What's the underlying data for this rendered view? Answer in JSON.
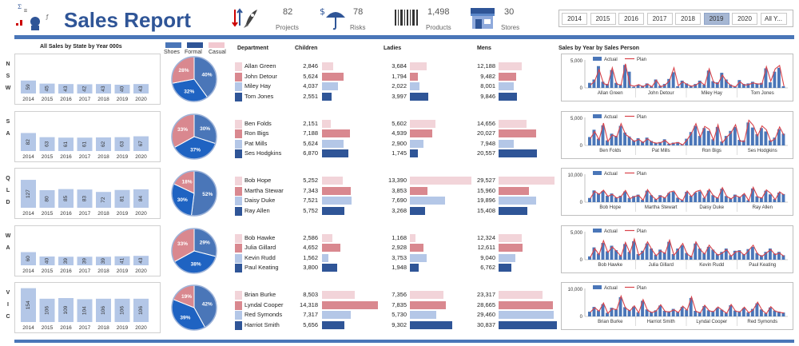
{
  "header": {
    "title": "Sales Report",
    "kpis": [
      {
        "id": "projects",
        "value": "82",
        "label": "Projects"
      },
      {
        "id": "risks",
        "value": "78",
        "label": "Risks"
      },
      {
        "id": "products",
        "value": "1,498",
        "label": "Products"
      },
      {
        "id": "stores",
        "value": "30",
        "label": "Stores"
      }
    ],
    "years": [
      "2014",
      "2015",
      "2016",
      "2017",
      "2018",
      "2019",
      "2020",
      "All Y..."
    ],
    "selected_year": "2019"
  },
  "headings": {
    "state_sales": "All Sales by State by Year 000s",
    "department": "Department",
    "children": "Children",
    "ladies": "Ladies",
    "mens": "Mens",
    "by_person": "Sales by Year by Sales Person"
  },
  "legend": [
    {
      "name": "Shoes",
      "color": "#4a76b8"
    },
    {
      "name": "Formal",
      "color": "#2f5597"
    },
    {
      "name": "Casual",
      "color": "#f2c8d0"
    }
  ],
  "colors": {
    "accent": "#2f5597",
    "bar_light": "#b4c7e7",
    "row_colors": [
      "#f2d4d9",
      "#d9888f",
      "#b4c7e7",
      "#2f5597"
    ],
    "pie": [
      "#4a76b8",
      "#1f63c2",
      "#d9888f"
    ],
    "actual": "#4a76b8",
    "plan": "#d9434a"
  },
  "chart_data": [
    {
      "id": "nsw",
      "type": "bar",
      "state_letters": [
        "N",
        "S",
        "W"
      ],
      "categories": [
        "2014",
        "2015",
        "2016",
        "2017",
        "2018",
        "2019",
        "2020"
      ],
      "values": [
        59,
        45,
        43,
        42,
        43,
        40,
        43
      ],
      "pie": {
        "type": "pie",
        "labels": [
          "40%",
          "32%",
          "28%"
        ],
        "values": [
          40,
          32,
          28
        ]
      },
      "people": [
        {
          "name": "Allan Green",
          "children": "2,846",
          "children_v": 2846,
          "ladies": "3,684",
          "ladies_v": 3684,
          "mens": "12,188",
          "mens_v": 12188
        },
        {
          "name": "John Detour",
          "children": "5,624",
          "children_v": 5624,
          "ladies": "1,794",
          "ladies_v": 1794,
          "mens": "9,482",
          "mens_v": 9482
        },
        {
          "name": "Miley Hay",
          "children": "4,037",
          "children_v": 4037,
          "ladies": "2,022",
          "ladies_v": 2022,
          "mens": "8,001",
          "mens_v": 8001
        },
        {
          "name": "Tom Jones",
          "children": "2,551",
          "children_v": 2551,
          "ladies": "3,997",
          "ladies_v": 3997,
          "mens": "9,846",
          "mens_v": 9846
        }
      ],
      "line": {
        "type": "bar",
        "ymax": 5000,
        "yticks": [
          "5,000",
          "0"
        ],
        "legend": [
          "Actual",
          "Plan"
        ],
        "names": [
          "Allan Green",
          "John Detour",
          "Miley Hay",
          "Tom Jones"
        ],
        "actual": [
          900,
          1500,
          3900,
          1100,
          700,
          3200,
          900,
          600,
          4100,
          2900,
          200,
          500,
          400,
          800,
          300,
          1500,
          400,
          700,
          1600,
          2800,
          300,
          1300,
          800,
          400,
          700,
          1300,
          600,
          3100,
          1200,
          1000,
          2700,
          1500,
          600,
          300,
          1400,
          700,
          800,
          1100,
          800,
          900,
          3500,
          1000,
          2900,
          3600,
          300
        ],
        "plan": [
          500,
          1200,
          3300,
          800,
          500,
          3600,
          700,
          500,
          4300,
          500,
          300,
          600,
          200,
          700,
          200,
          1400,
          200,
          500,
          1300,
          3600,
          400,
          1100,
          600,
          300,
          500,
          1100,
          500,
          3400,
          1000,
          700,
          2300,
          1100,
          400,
          200,
          1100,
          500,
          600,
          900,
          700,
          700,
          3800,
          1200,
          3400,
          4000,
          300
        ]
      }
    },
    {
      "id": "sa",
      "type": "bar",
      "state_letters": [
        "S",
        "A"
      ],
      "categories": [
        "2014",
        "2015",
        "2016",
        "2017",
        "2018",
        "2019",
        "2020"
      ],
      "values": [
        82,
        63,
        61,
        61,
        62,
        63,
        67
      ],
      "pie": {
        "type": "pie",
        "labels": [
          "30%",
          "37%",
          "33%"
        ],
        "values": [
          30,
          37,
          33
        ]
      },
      "people": [
        {
          "name": "Ben Folds",
          "children": "2,151",
          "children_v": 2151,
          "ladies": "5,602",
          "ladies_v": 5602,
          "mens": "14,656",
          "mens_v": 14656
        },
        {
          "name": "Ron Bigs",
          "children": "7,188",
          "children_v": 7188,
          "ladies": "4,939",
          "ladies_v": 4939,
          "mens": "20,027",
          "mens_v": 20027
        },
        {
          "name": "Pat Mills",
          "children": "5,624",
          "children_v": 5624,
          "ladies": "2,900",
          "ladies_v": 2900,
          "mens": "7,948",
          "mens_v": 7948
        },
        {
          "name": "Ses Hodgkins",
          "children": "6,870",
          "children_v": 6870,
          "ladies": "1,745",
          "ladies_v": 1745,
          "mens": "20,557",
          "mens_v": 20557
        }
      ],
      "line": {
        "type": "bar",
        "ymax": 5000,
        "yticks": [
          "5,000",
          "0"
        ],
        "legend": [
          "Actual",
          "Plan"
        ],
        "names": [
          "Ben Folds",
          "Pat Mills",
          "Ron Bigs",
          "Ses Hodgkins"
        ],
        "actual": [
          1500,
          2800,
          1200,
          3600,
          900,
          2100,
          1700,
          3500,
          2300,
          1600,
          900,
          1300,
          700,
          1400,
          800,
          500,
          600,
          1100,
          300,
          500,
          600,
          200,
          1200,
          2400,
          3500,
          1700,
          3100,
          2600,
          1100,
          3300,
          700,
          1700,
          2600,
          3300,
          1000,
          900,
          4100,
          3200,
          2000,
          3100,
          2500,
          900,
          1400,
          2900,
          2100
        ],
        "plan": [
          1200,
          2500,
          1000,
          4000,
          700,
          1900,
          1500,
          3900,
          2000,
          1400,
          700,
          1100,
          500,
          1200,
          600,
          400,
          500,
          900,
          200,
          400,
          500,
          100,
          1000,
          2200,
          3900,
          1500,
          3400,
          2900,
          900,
          3700,
          500,
          1500,
          2300,
          3700,
          800,
          700,
          4500,
          3600,
          1700,
          3500,
          2800,
          700,
          1200,
          3300,
          1800
        ]
      }
    },
    {
      "id": "qld",
      "type": "bar",
      "state_letters": [
        "Q",
        "L",
        "D"
      ],
      "categories": [
        "2014",
        "2015",
        "2016",
        "2017",
        "2018",
        "2019",
        "2020"
      ],
      "values": [
        127,
        80,
        85,
        83,
        72,
        81,
        84
      ],
      "pie": {
        "type": "pie",
        "labels": [
          "52%",
          "30%",
          "18%"
        ],
        "values": [
          52,
          30,
          18
        ]
      },
      "people": [
        {
          "name": "Bob Hope",
          "children": "5,252",
          "children_v": 5252,
          "ladies": "13,390",
          "ladies_v": 13390,
          "mens": "29,527",
          "mens_v": 29527
        },
        {
          "name": "Martha Stewar",
          "children": "7,343",
          "children_v": 7343,
          "ladies": "3,853",
          "ladies_v": 3853,
          "mens": "15,960",
          "mens_v": 15960
        },
        {
          "name": "Daisy Duke",
          "children": "7,521",
          "children_v": 7521,
          "ladies": "7,690",
          "ladies_v": 7690,
          "mens": "19,896",
          "mens_v": 19896
        },
        {
          "name": "Ray Allen",
          "children": "5,752",
          "children_v": 5752,
          "ladies": "3,268",
          "ladies_v": 3268,
          "mens": "15,408",
          "mens_v": 15408
        }
      ],
      "line": {
        "type": "bar",
        "ymax": 10000,
        "yticks": [
          "10,000",
          "0"
        ],
        "legend": [
          "Actual",
          "Plan"
        ],
        "names": [
          "Bob Hope",
          "Martha Stewart",
          "Daisy Duke",
          "Ray Allen"
        ],
        "actual": [
          1500,
          4200,
          3100,
          4000,
          2300,
          3100,
          1700,
          2300,
          3800,
          1500,
          2200,
          2700,
          900,
          4100,
          2500,
          1100,
          2500,
          1700,
          3300,
          3700,
          1600,
          800,
          3700,
          2300,
          3500,
          3900,
          1600,
          4200,
          2500,
          1600,
          4800,
          2200,
          1400,
          2700,
          1900,
          2800,
          700,
          4900,
          2100,
          1700,
          4100,
          2800,
          1100,
          3400,
          2900
        ],
        "plan": [
          1300,
          3900,
          2800,
          4300,
          2100,
          2800,
          1500,
          2000,
          4200,
          1300,
          2000,
          2400,
          700,
          4500,
          2200,
          900,
          2200,
          1500,
          3600,
          4000,
          1400,
          600,
          4000,
          2000,
          3800,
          4300,
          1400,
          4600,
          2200,
          1400,
          5200,
          2000,
          1200,
          2400,
          1700,
          3100,
          500,
          5300,
          1900,
          1500,
          4400,
          3100,
          900,
          3700,
          2600
        ]
      }
    },
    {
      "id": "wa",
      "type": "bar",
      "state_letters": [
        "W",
        "A"
      ],
      "categories": [
        "2014",
        "2015",
        "2016",
        "2017",
        "2018",
        "2019",
        "2020"
      ],
      "values": [
        60,
        40,
        39,
        39,
        39,
        41,
        43
      ],
      "pie": {
        "type": "pie",
        "labels": [
          "29%",
          "38%",
          "33%"
        ],
        "values": [
          29,
          38,
          33
        ]
      },
      "people": [
        {
          "name": "Bob Hawke",
          "children": "2,586",
          "children_v": 2586,
          "ladies": "1,168",
          "ladies_v": 1168,
          "mens": "12,324",
          "mens_v": 12324
        },
        {
          "name": "Julia Gillard",
          "children": "4,652",
          "children_v": 4652,
          "ladies": "2,928",
          "ladies_v": 2928,
          "mens": "12,611",
          "mens_v": 12611
        },
        {
          "name": "Kevin Rudd",
          "children": "1,562",
          "children_v": 1562,
          "ladies": "3,753",
          "ladies_v": 3753,
          "mens": "9,040",
          "mens_v": 9040
        },
        {
          "name": "Paul Keating",
          "children": "3,800",
          "children_v": 3800,
          "ladies": "1,948",
          "ladies_v": 1948,
          "mens": "6,762",
          "mens_v": 6762
        }
      ],
      "line": {
        "type": "bar",
        "ymax": 5000,
        "yticks": [
          "5,000",
          "0"
        ],
        "legend": [
          "Actual",
          "Plan"
        ],
        "names": [
          "Bob Hawke",
          "Julia Gillard",
          "Kevin Rudd",
          "Paul Keating"
        ],
        "actual": [
          600,
          2200,
          1100,
          3000,
          1500,
          2500,
          1700,
          800,
          2800,
          1400,
          3300,
          1000,
          1600,
          2900,
          2000,
          900,
          1800,
          1300,
          3200,
          1000,
          2000,
          2600,
          1200,
          700,
          2900,
          2000,
          1200,
          2300,
          1800,
          1000,
          1400,
          2000,
          800,
          1600,
          1700,
          1000,
          1900,
          2300,
          1200,
          800,
          1400,
          2000,
          1100,
          1400,
          800
        ],
        "plan": [
          400,
          2000,
          900,
          3400,
          1300,
          2300,
          1500,
          600,
          3100,
          1200,
          3700,
          800,
          1400,
          3200,
          1800,
          700,
          1600,
          1100,
          3500,
          800,
          1800,
          2900,
          1000,
          500,
          3200,
          1800,
          1000,
          2600,
          1600,
          800,
          1200,
          1800,
          600,
          1400,
          1500,
          800,
          1700,
          2600,
          1000,
          600,
          1200,
          1800,
          900,
          1200,
          600
        ]
      }
    },
    {
      "id": "vic",
      "type": "bar",
      "state_letters": [
        "V",
        "I",
        "C"
      ],
      "categories": [
        "2014",
        "2015",
        "2016",
        "2017",
        "2018",
        "2019",
        "2020"
      ],
      "values": [
        154,
        106,
        109,
        104,
        106,
        106,
        106
      ],
      "pie": {
        "type": "pie",
        "labels": [
          "42%",
          "39%",
          "19%"
        ],
        "values": [
          42,
          39,
          19
        ]
      },
      "people": [
        {
          "name": "Brian Burke",
          "children": "8,503",
          "children_v": 8503,
          "ladies": "7,356",
          "ladies_v": 7356,
          "mens": "23,317",
          "mens_v": 23317
        },
        {
          "name": "Lyndal Cooper",
          "children": "14,318",
          "children_v": 14318,
          "ladies": "7,835",
          "ladies_v": 7835,
          "mens": "28,665",
          "mens_v": 28665
        },
        {
          "name": "Red Symonds",
          "children": "7,317",
          "children_v": 7317,
          "ladies": "5,730",
          "ladies_v": 5730,
          "mens": "29,460",
          "mens_v": 29460
        },
        {
          "name": "Harriot Smith",
          "children": "5,656",
          "children_v": 5656,
          "ladies": "9,302",
          "ladies_v": 9302,
          "mens": "30,837",
          "mens_v": 30837
        }
      ],
      "line": {
        "type": "bar",
        "ymax": 10000,
        "yticks": [
          "10,000",
          "0"
        ],
        "legend": [
          "Actual",
          "Plan"
        ],
        "names": [
          "Brian Burke",
          "Harriot Smith",
          "Lyndal Cooper",
          "Red Symonds"
        ],
        "actual": [
          1700,
          3400,
          2100,
          4400,
          1300,
          3100,
          2600,
          6900,
          3300,
          2200,
          3500,
          1500,
          5600,
          2500,
          1600,
          2200,
          3900,
          2000,
          1800,
          2700,
          1600,
          3400,
          2400,
          6600,
          2000,
          1500,
          3700,
          2200,
          1900,
          3100,
          2400,
          1300,
          4000,
          2100,
          1800,
          3000,
          1500,
          2700,
          4700,
          2500,
          1200,
          3200,
          2100,
          1700,
          1400
        ],
        "plan": [
          1500,
          3100,
          1900,
          4800,
          1100,
          2800,
          2400,
          7300,
          3000,
          2000,
          3800,
          1300,
          6000,
          2200,
          1400,
          2000,
          4200,
          1800,
          1600,
          2400,
          1400,
          3700,
          2200,
          7000,
          1800,
          1300,
          4000,
          2000,
          1700,
          3400,
          2200,
          1100,
          4300,
          1900,
          1600,
          3300,
          1300,
          2400,
          5100,
          2300,
          1000,
          3500,
          1900,
          1500,
          1200
        ]
      }
    }
  ]
}
